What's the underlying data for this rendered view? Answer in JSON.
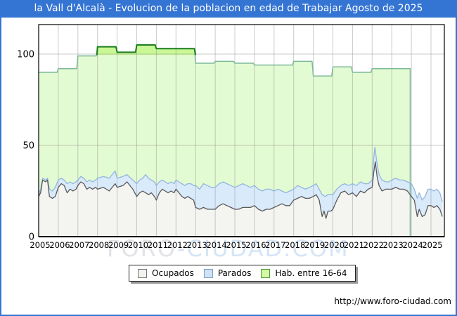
{
  "window": {
    "title": "la Vall d'Alcalà - Evolucion de la poblacion en edad de Trabajar Agosto de 2025"
  },
  "watermark": {
    "part1": "FORO",
    "part2": "-CIUDAD.COM"
  },
  "footer": {
    "url": "http://www.foro-ciudad.com"
  },
  "legend": {
    "items": [
      {
        "label": "Ocupados",
        "fill": "#f2f2ef",
        "border": "#777777"
      },
      {
        "label": "Parados",
        "fill": "#cfe3f7",
        "border": "#7a9fc6"
      },
      {
        "label": "Hab. entre 16-64",
        "fill": "#d6f7a4",
        "border": "#4d9e35"
      }
    ]
  },
  "chart_data": {
    "type": "area",
    "title": "la Vall d'Alcalà - Evolucion de la poblacion en edad de Trabajar Agosto de 2025",
    "xlabel": "",
    "ylabel": "",
    "x_axis": {
      "ticks": [
        "2005",
        "2006",
        "2007",
        "2008",
        "2009",
        "2010",
        "2011",
        "2012",
        "2013",
        "2014",
        "2015",
        "2016",
        "2017",
        "2018",
        "2019",
        "2020",
        "2021",
        "2022",
        "2023",
        "2024",
        "2025"
      ],
      "range": [
        2005,
        2025.58
      ]
    },
    "y_axis": {
      "ticks": [
        0,
        50,
        100
      ],
      "range": [
        0,
        116
      ]
    },
    "grid": true,
    "legend_position": "bottom",
    "series": [
      {
        "name": "Hab. entre 16-64",
        "style": "yearly-step",
        "fill": "#e3fbd2",
        "stroke": "#7cba9a",
        "overflow_threshold": 100,
        "overflow_fill": "#c9f795",
        "overflow_stroke": "#1d7e1f",
        "end": 2024,
        "data": [
          [
            2005,
            90
          ],
          [
            2006,
            92
          ],
          [
            2007,
            99
          ],
          [
            2008,
            104
          ],
          [
            2009,
            101
          ],
          [
            2010,
            105
          ],
          [
            2011,
            103
          ],
          [
            2012,
            103
          ],
          [
            2013,
            95
          ],
          [
            2014,
            96
          ],
          [
            2015,
            95
          ],
          [
            2016,
            94
          ],
          [
            2017,
            94
          ],
          [
            2018,
            96
          ],
          [
            2019,
            88
          ],
          [
            2020,
            93
          ],
          [
            2021,
            90
          ],
          [
            2022,
            92
          ],
          [
            2023,
            92
          ]
        ],
        "overflow_points": [
          [
            2007.97,
            99.5
          ],
          [
            2008,
            104
          ],
          [
            2008.94,
            104
          ],
          [
            2009,
            101
          ],
          [
            2009.94,
            101
          ],
          [
            2010,
            105
          ],
          [
            2010.94,
            105
          ],
          [
            2011,
            103
          ],
          [
            2011.94,
            103
          ],
          [
            2012,
            103
          ],
          [
            2012.94,
            103
          ],
          [
            2013,
            99.5
          ]
        ]
      },
      {
        "name": "Parados",
        "note": "top edge = Ocupados + Parados (stacked above Ocupados)",
        "fill": "#d9eafb",
        "stroke": "#92b6dc",
        "points": [
          [
            2005,
            23
          ],
          [
            2005.1,
            26
          ],
          [
            2005.2,
            32
          ],
          [
            2005.35,
            31
          ],
          [
            2005.45,
            32
          ],
          [
            2005.55,
            26
          ],
          [
            2005.7,
            25
          ],
          [
            2005.85,
            27
          ],
          [
            2006,
            31
          ],
          [
            2006.15,
            32
          ],
          [
            2006.3,
            31
          ],
          [
            2006.45,
            29
          ],
          [
            2006.6,
            30
          ],
          [
            2006.75,
            29
          ],
          [
            2006.9,
            30
          ],
          [
            2007,
            31
          ],
          [
            2007.15,
            33
          ],
          [
            2007.3,
            32
          ],
          [
            2007.45,
            30
          ],
          [
            2007.6,
            31
          ],
          [
            2007.75,
            30
          ],
          [
            2007.9,
            31
          ],
          [
            2008,
            32
          ],
          [
            2008.3,
            33
          ],
          [
            2008.6,
            32
          ],
          [
            2008.9,
            36
          ],
          [
            2009,
            32
          ],
          [
            2009.3,
            33
          ],
          [
            2009.5,
            34
          ],
          [
            2009.8,
            31
          ],
          [
            2010,
            29
          ],
          [
            2010.15,
            31
          ],
          [
            2010.3,
            32
          ],
          [
            2010.45,
            34
          ],
          [
            2010.6,
            32
          ],
          [
            2010.75,
            31
          ],
          [
            2010.9,
            30
          ],
          [
            2011,
            28
          ],
          [
            2011.15,
            30
          ],
          [
            2011.3,
            31
          ],
          [
            2011.45,
            30
          ],
          [
            2011.6,
            29
          ],
          [
            2011.75,
            30
          ],
          [
            2011.9,
            29
          ],
          [
            2012,
            31
          ],
          [
            2012.15,
            30
          ],
          [
            2012.3,
            29
          ],
          [
            2012.45,
            28
          ],
          [
            2012.6,
            29
          ],
          [
            2012.75,
            29
          ],
          [
            2012.9,
            28
          ],
          [
            2013,
            28
          ],
          [
            2013.2,
            26
          ],
          [
            2013.4,
            29
          ],
          [
            2013.6,
            28
          ],
          [
            2013.8,
            27
          ],
          [
            2014,
            27
          ],
          [
            2014.2,
            29
          ],
          [
            2014.4,
            30
          ],
          [
            2014.6,
            29
          ],
          [
            2014.8,
            28
          ],
          [
            2015,
            27
          ],
          [
            2015.2,
            28
          ],
          [
            2015.4,
            29
          ],
          [
            2015.6,
            28
          ],
          [
            2015.8,
            27
          ],
          [
            2016,
            28
          ],
          [
            2016.2,
            26
          ],
          [
            2016.4,
            25
          ],
          [
            2016.6,
            26
          ],
          [
            2016.8,
            26
          ],
          [
            2017,
            25
          ],
          [
            2017.2,
            26
          ],
          [
            2017.4,
            25
          ],
          [
            2017.6,
            24
          ],
          [
            2017.8,
            25
          ],
          [
            2018,
            26
          ],
          [
            2018.2,
            28
          ],
          [
            2018.4,
            27
          ],
          [
            2018.6,
            26
          ],
          [
            2018.8,
            27
          ],
          [
            2019,
            28
          ],
          [
            2019.15,
            29
          ],
          [
            2019.3,
            26
          ],
          [
            2019.45,
            23
          ],
          [
            2019.6,
            22
          ],
          [
            2019.75,
            23
          ],
          [
            2019.9,
            23
          ],
          [
            2020,
            23
          ],
          [
            2020.2,
            26
          ],
          [
            2020.4,
            28
          ],
          [
            2020.6,
            29
          ],
          [
            2020.8,
            28
          ],
          [
            2021,
            29
          ],
          [
            2021.2,
            28
          ],
          [
            2021.4,
            30
          ],
          [
            2021.6,
            29
          ],
          [
            2021.8,
            29
          ],
          [
            2022,
            31
          ],
          [
            2022.08,
            43
          ],
          [
            2022.14,
            49
          ],
          [
            2022.25,
            40
          ],
          [
            2022.35,
            34
          ],
          [
            2022.5,
            31
          ],
          [
            2022.7,
            30
          ],
          [
            2022.85,
            30
          ],
          [
            2023,
            31
          ],
          [
            2023.2,
            32
          ],
          [
            2023.4,
            31
          ],
          [
            2023.6,
            31
          ],
          [
            2023.8,
            30
          ],
          [
            2024,
            29
          ],
          [
            2024.15,
            26
          ],
          [
            2024.3,
            21
          ],
          [
            2024.4,
            24
          ],
          [
            2024.55,
            20
          ],
          [
            2024.7,
            22
          ],
          [
            2024.85,
            26
          ],
          [
            2025,
            26
          ],
          [
            2025.15,
            25
          ],
          [
            2025.3,
            26
          ],
          [
            2025.45,
            24
          ],
          [
            2025.58,
            19
          ]
        ]
      },
      {
        "name": "Ocupados",
        "fill": "#f4f4f1",
        "stroke": "#5a5a5a",
        "points": [
          [
            2005,
            22
          ],
          [
            2005.1,
            24
          ],
          [
            2005.2,
            31
          ],
          [
            2005.35,
            30
          ],
          [
            2005.45,
            31
          ],
          [
            2005.55,
            22
          ],
          [
            2005.7,
            21
          ],
          [
            2005.85,
            22
          ],
          [
            2006,
            27
          ],
          [
            2006.15,
            29
          ],
          [
            2006.3,
            28
          ],
          [
            2006.45,
            24
          ],
          [
            2006.6,
            26
          ],
          [
            2006.75,
            25
          ],
          [
            2006.9,
            26
          ],
          [
            2007,
            28
          ],
          [
            2007.15,
            30
          ],
          [
            2007.3,
            29
          ],
          [
            2007.45,
            26
          ],
          [
            2007.6,
            27
          ],
          [
            2007.75,
            26
          ],
          [
            2007.9,
            27
          ],
          [
            2008,
            26
          ],
          [
            2008.3,
            27
          ],
          [
            2008.6,
            25
          ],
          [
            2008.9,
            29
          ],
          [
            2009,
            27
          ],
          [
            2009.3,
            28
          ],
          [
            2009.5,
            30
          ],
          [
            2009.8,
            26
          ],
          [
            2010,
            22
          ],
          [
            2010.15,
            24
          ],
          [
            2010.3,
            25
          ],
          [
            2010.45,
            24
          ],
          [
            2010.6,
            23
          ],
          [
            2010.75,
            24
          ],
          [
            2010.9,
            22
          ],
          [
            2011,
            20
          ],
          [
            2011.15,
            24
          ],
          [
            2011.3,
            26
          ],
          [
            2011.45,
            25
          ],
          [
            2011.6,
            24
          ],
          [
            2011.75,
            25
          ],
          [
            2011.9,
            24
          ],
          [
            2012,
            26
          ],
          [
            2012.15,
            24
          ],
          [
            2012.3,
            22
          ],
          [
            2012.45,
            21
          ],
          [
            2012.6,
            22
          ],
          [
            2012.75,
            21
          ],
          [
            2012.9,
            20
          ],
          [
            2013,
            16
          ],
          [
            2013.2,
            15
          ],
          [
            2013.4,
            16
          ],
          [
            2013.6,
            15
          ],
          [
            2013.8,
            15
          ],
          [
            2014,
            15
          ],
          [
            2014.2,
            17
          ],
          [
            2014.4,
            18
          ],
          [
            2014.6,
            17
          ],
          [
            2014.8,
            16
          ],
          [
            2015,
            15
          ],
          [
            2015.2,
            15
          ],
          [
            2015.4,
            16
          ],
          [
            2015.6,
            16
          ],
          [
            2015.8,
            16
          ],
          [
            2016,
            17
          ],
          [
            2016.2,
            15
          ],
          [
            2016.4,
            14
          ],
          [
            2016.6,
            15
          ],
          [
            2016.8,
            15
          ],
          [
            2017,
            16
          ],
          [
            2017.2,
            17
          ],
          [
            2017.4,
            18
          ],
          [
            2017.6,
            17
          ],
          [
            2017.8,
            17
          ],
          [
            2018,
            20
          ],
          [
            2018.2,
            21
          ],
          [
            2018.4,
            22
          ],
          [
            2018.6,
            21
          ],
          [
            2018.8,
            21
          ],
          [
            2019,
            22
          ],
          [
            2019.15,
            23
          ],
          [
            2019.3,
            20
          ],
          [
            2019.45,
            11
          ],
          [
            2019.55,
            14
          ],
          [
            2019.65,
            10
          ],
          [
            2019.75,
            14
          ],
          [
            2019.9,
            14
          ],
          [
            2020,
            15
          ],
          [
            2020.2,
            20
          ],
          [
            2020.4,
            24
          ],
          [
            2020.6,
            25
          ],
          [
            2020.8,
            23
          ],
          [
            2021,
            24
          ],
          [
            2021.2,
            22
          ],
          [
            2021.4,
            25
          ],
          [
            2021.6,
            24
          ],
          [
            2021.8,
            26
          ],
          [
            2022,
            27
          ],
          [
            2022.08,
            35
          ],
          [
            2022.16,
            41
          ],
          [
            2022.25,
            33
          ],
          [
            2022.35,
            28
          ],
          [
            2022.5,
            25
          ],
          [
            2022.7,
            26
          ],
          [
            2022.85,
            26
          ],
          [
            2023,
            26
          ],
          [
            2023.2,
            27
          ],
          [
            2023.4,
            26
          ],
          [
            2023.6,
            26
          ],
          [
            2023.8,
            25
          ],
          [
            2024,
            22
          ],
          [
            2024.15,
            20
          ],
          [
            2024.3,
            11
          ],
          [
            2024.4,
            15
          ],
          [
            2024.55,
            11
          ],
          [
            2024.7,
            12
          ],
          [
            2024.85,
            17
          ],
          [
            2025,
            17
          ],
          [
            2025.15,
            16
          ],
          [
            2025.3,
            17
          ],
          [
            2025.45,
            15
          ],
          [
            2025.58,
            11
          ]
        ]
      }
    ]
  }
}
